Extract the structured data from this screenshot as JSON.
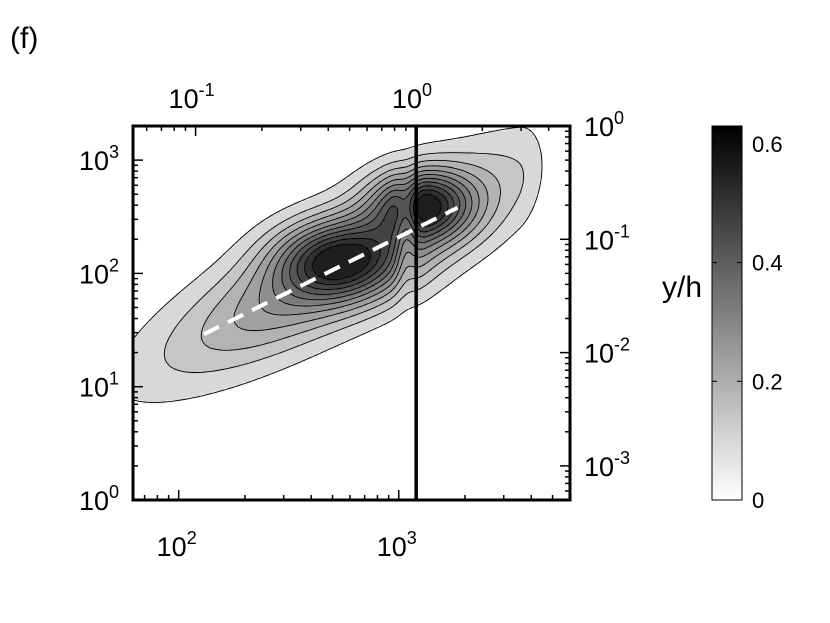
{
  "panel_label": "(f)",
  "chart_data": {
    "type": "heatmap",
    "title": "",
    "xlabel": "",
    "ylabel": "",
    "right_axis_label": "y/h",
    "x_scale": "log",
    "y_scale": "log",
    "xlim": [
      62,
      6000
    ],
    "ylim": [
      1,
      2000
    ],
    "x_ticks": [
      {
        "value": 100,
        "base": "10",
        "exp": "2"
      },
      {
        "value": 1000,
        "base": "10",
        "exp": "3"
      }
    ],
    "y_ticks": [
      {
        "value": 1,
        "base": "10",
        "exp": "0"
      },
      {
        "value": 10,
        "base": "10",
        "exp": "1"
      },
      {
        "value": 100,
        "base": "10",
        "exp": "2"
      },
      {
        "value": 1000,
        "base": "10",
        "exp": "3"
      }
    ],
    "top_axis": {
      "scale": "log",
      "lim": [
        0.052,
        5.0
      ],
      "ticks": [
        {
          "value": 0.1,
          "base": "10",
          "exp": "-1"
        },
        {
          "value": 1,
          "base": "10",
          "exp": "0"
        }
      ]
    },
    "right_axis": {
      "scale": "log",
      "lim": [
        0.0005,
        1.0
      ],
      "ticks": [
        {
          "value": 0.001,
          "base": "10",
          "exp": "-3"
        },
        {
          "value": 0.01,
          "base": "10",
          "exp": "-2"
        },
        {
          "value": 0.1,
          "base": "10",
          "exp": "-1"
        },
        {
          "value": 1,
          "base": "10",
          "exp": "0"
        }
      ]
    },
    "reference_line": {
      "x": 1200,
      "style": "solid",
      "color": "#000000"
    },
    "ridge_line": {
      "style": "dashed",
      "color": "#ffffff",
      "x": [
        130,
        1850
      ],
      "y": [
        29,
        380
      ]
    },
    "peaks": [
      {
        "x": 530,
        "y": 130,
        "value": 0.62
      },
      {
        "x": 1280,
        "y": 410,
        "value": 0.62
      }
    ],
    "contour_levels": [
      0.05,
      0.1,
      0.15,
      0.2,
      0.25,
      0.3,
      0.35,
      0.4,
      0.45,
      0.5,
      0.55
    ],
    "colorbar": {
      "min": 0,
      "max": 0.63,
      "ticks": [
        {
          "value": 0,
          "label": "0"
        },
        {
          "value": 0.2,
          "label": "0.2"
        },
        {
          "value": 0.4,
          "label": "0.4"
        },
        {
          "value": 0.6,
          "label": "0.6"
        }
      ],
      "colormap": "gray",
      "low_color": "#ffffff",
      "high_color": "#000000"
    },
    "grid": false
  }
}
